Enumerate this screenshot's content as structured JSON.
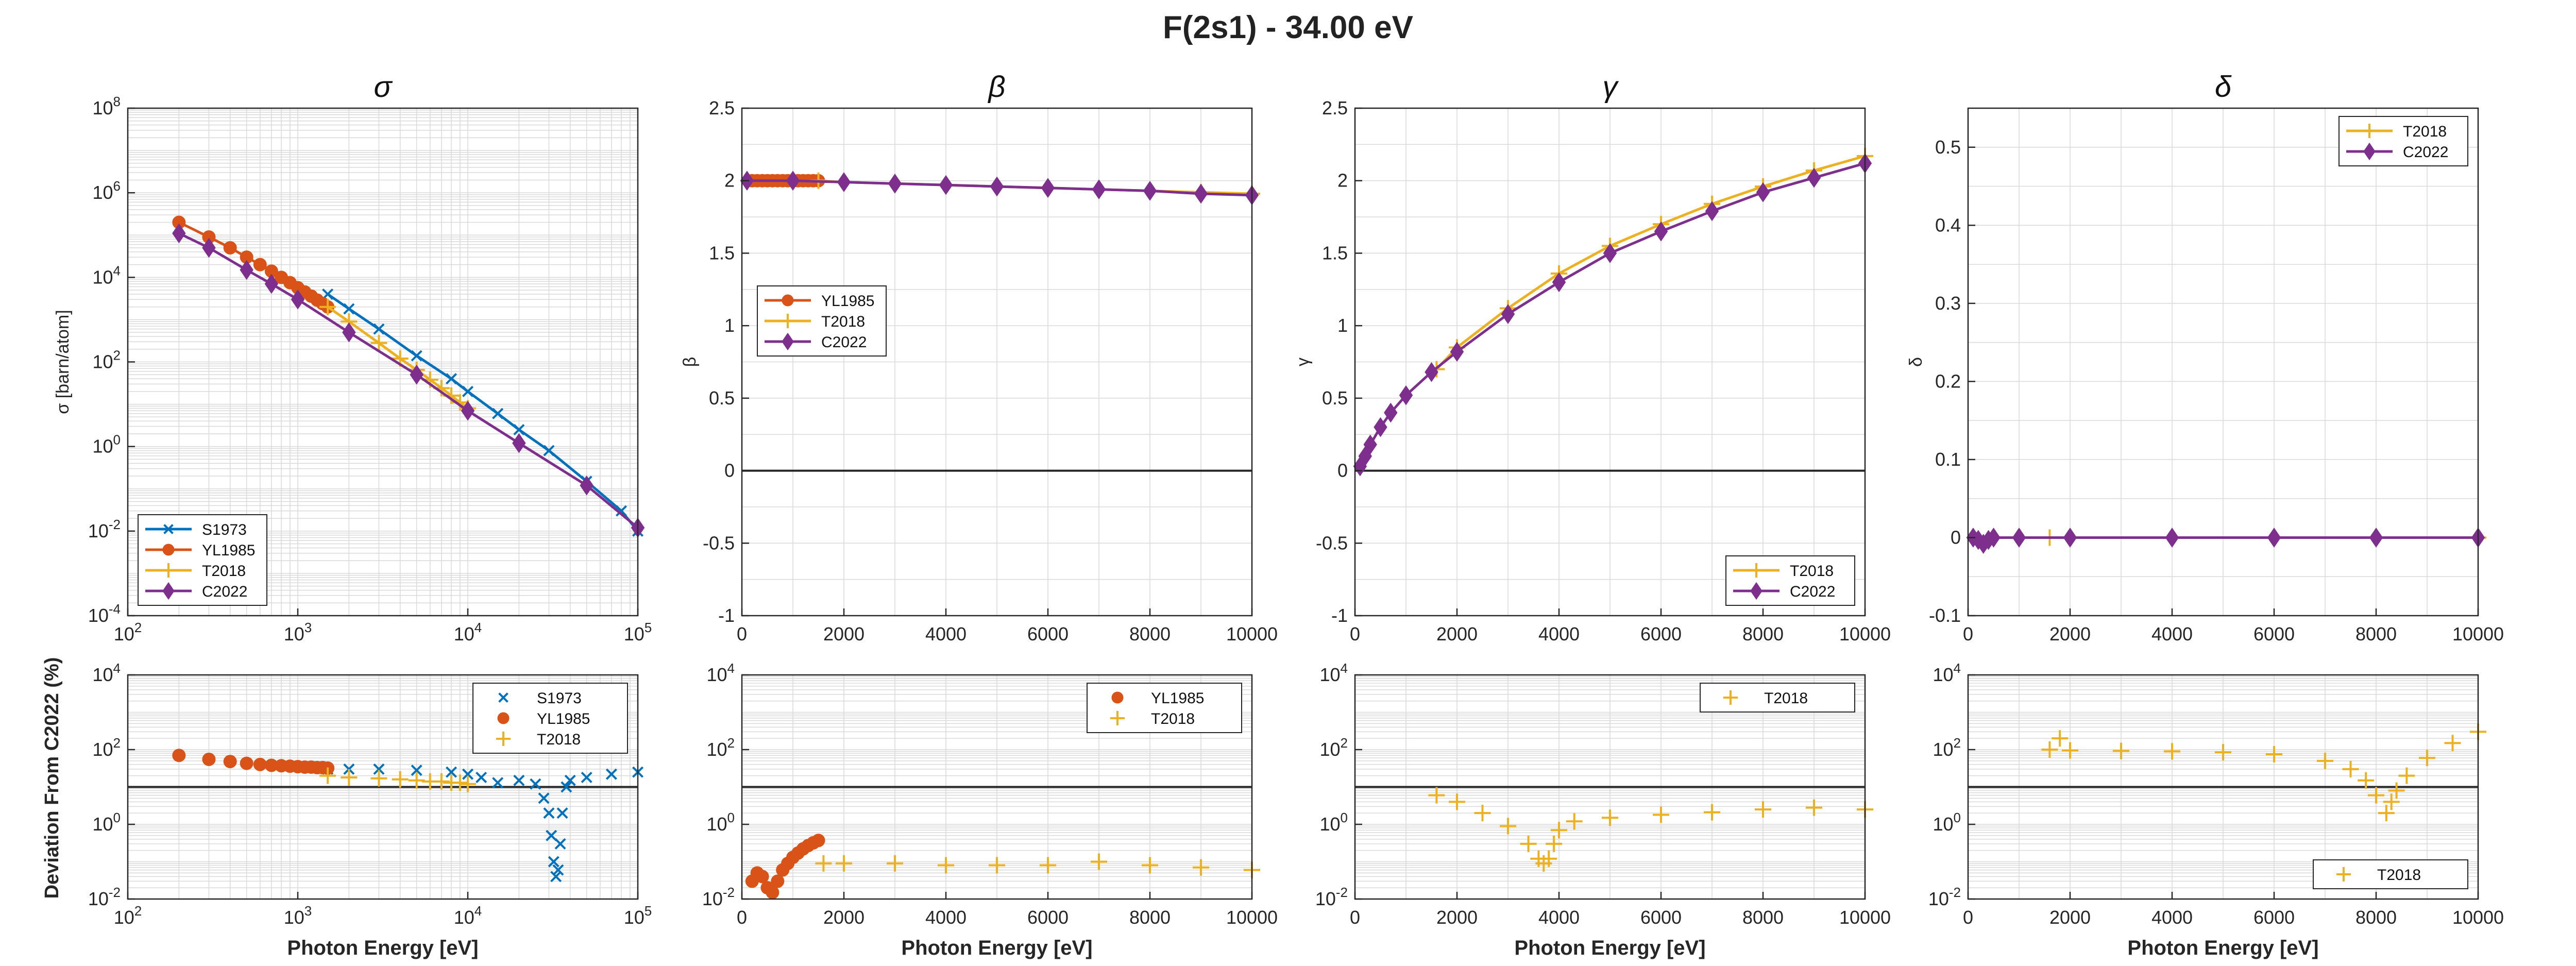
{
  "figure": {
    "title": "F(2s1) - 34.00 eV"
  },
  "colors": {
    "S1973": "#0072BD",
    "YL1985": "#D95319",
    "T2018": "#EDB120",
    "C2022": "#7E2F8E",
    "refline": "#262626",
    "grid": "#d9d9d9",
    "axis": "#262626"
  },
  "chart_data": [
    {
      "id": "sigma",
      "type": "line",
      "title": "σ",
      "ylabel": "σ [barn/atom]",
      "xlabel": "",
      "xscale": "log",
      "yscale": "log",
      "xlim": [
        100,
        100000
      ],
      "ylim": [
        0.0001,
        100000000
      ],
      "xticks": [
        100,
        1000,
        10000,
        100000
      ],
      "yticks": [
        0.0001,
        0.01,
        1,
        100,
        10000,
        1000000,
        100000000
      ],
      "grid": true,
      "legend": "bottom-left",
      "series": [
        {
          "name": "S1973",
          "marker": "x",
          "x": [
            1500,
            2000,
            3000,
            5000,
            8000,
            10000,
            15000,
            20000,
            30000,
            50000,
            80000,
            100000
          ],
          "y": [
            4000,
            1800,
            600,
            140,
            40,
            20,
            6,
            2.5,
            0.8,
            0.15,
            0.03,
            0.01
          ]
        },
        {
          "name": "YL1985",
          "marker": "o",
          "x": [
            200,
            300,
            400,
            500,
            600,
            700,
            800,
            900,
            1000,
            1100,
            1200,
            1300,
            1400,
            1500
          ],
          "y": [
            200000,
            90000,
            50000,
            30000,
            20000,
            14000,
            10000,
            7500,
            5700,
            4500,
            3600,
            2900,
            2400,
            2000
          ]
        },
        {
          "name": "T2018",
          "marker": "+",
          "x": [
            1500,
            2000,
            3000,
            4000,
            5000,
            6000,
            7000,
            8000,
            9000,
            10000
          ],
          "y": [
            2000,
            900,
            280,
            120,
            65,
            38,
            24,
            16,
            11,
            8
          ]
        },
        {
          "name": "C2022",
          "marker": "d",
          "x": [
            200,
            300,
            500,
            700,
            1000,
            2000,
            5000,
            10000,
            20000,
            50000,
            100000
          ],
          "y": [
            110000,
            50000,
            15000,
            7000,
            3000,
            500,
            50,
            7,
            1.2,
            0.12,
            0.012
          ]
        }
      ]
    },
    {
      "id": "beta",
      "type": "line",
      "title": "β",
      "ylabel": "β",
      "xlabel": "",
      "xscale": "linear",
      "yscale": "linear",
      "xlim": [
        0,
        10000
      ],
      "ylim": [
        -1,
        2.5
      ],
      "xticks": [
        0,
        2000,
        4000,
        6000,
        8000,
        10000
      ],
      "yticks": [
        -1,
        -0.5,
        0,
        0.5,
        1,
        1.5,
        2,
        2.5
      ],
      "grid": true,
      "legend": "upper-left",
      "refline": 0,
      "series": [
        {
          "name": "YL1985",
          "marker": "o",
          "x": [
            200,
            300,
            400,
            500,
            600,
            700,
            800,
            900,
            1000,
            1100,
            1200,
            1300,
            1400,
            1500
          ],
          "y": [
            2,
            2,
            2,
            2,
            2,
            2,
            2,
            2,
            2,
            2,
            2,
            2,
            2,
            2
          ]
        },
        {
          "name": "T2018",
          "marker": "+",
          "x": [
            1500,
            2000,
            3000,
            4000,
            5000,
            6000,
            7000,
            8000,
            9000,
            10000
          ],
          "y": [
            2.0,
            1.99,
            1.98,
            1.97,
            1.96,
            1.95,
            1.94,
            1.93,
            1.92,
            1.91
          ]
        },
        {
          "name": "C2022",
          "marker": "d",
          "x": [
            100,
            1000,
            2000,
            3000,
            4000,
            5000,
            6000,
            7000,
            8000,
            9000,
            10000
          ],
          "y": [
            2.0,
            2.0,
            1.99,
            1.98,
            1.97,
            1.96,
            1.95,
            1.94,
            1.93,
            1.91,
            1.9
          ]
        }
      ]
    },
    {
      "id": "gamma",
      "type": "line",
      "title": "γ",
      "ylabel": "γ",
      "xlabel": "",
      "xscale": "linear",
      "yscale": "linear",
      "xlim": [
        0,
        10000
      ],
      "ylim": [
        -1,
        2.5
      ],
      "xticks": [
        0,
        2000,
        4000,
        6000,
        8000,
        10000
      ],
      "yticks": [
        -1,
        -0.5,
        0,
        0.5,
        1,
        1.5,
        2,
        2.5
      ],
      "grid": true,
      "legend": "bottom-right",
      "refline": 0,
      "series": [
        {
          "name": "T2018",
          "marker": "+",
          "x": [
            1600,
            2000,
            3000,
            4000,
            5000,
            6000,
            7000,
            8000,
            9000,
            10000
          ],
          "y": [
            0.7,
            0.85,
            1.12,
            1.36,
            1.55,
            1.7,
            1.84,
            1.96,
            2.07,
            2.17
          ]
        },
        {
          "name": "C2022",
          "marker": "d",
          "x": [
            100,
            200,
            300,
            500,
            700,
            1000,
            1500,
            2000,
            3000,
            4000,
            5000,
            6000,
            7000,
            8000,
            9000,
            10000
          ],
          "y": [
            0.03,
            0.1,
            0.18,
            0.3,
            0.4,
            0.52,
            0.68,
            0.82,
            1.08,
            1.3,
            1.5,
            1.65,
            1.79,
            1.92,
            2.02,
            2.12
          ]
        }
      ]
    },
    {
      "id": "delta",
      "type": "line",
      "title": "δ",
      "ylabel": "δ",
      "xlabel": "",
      "xscale": "linear",
      "yscale": "linear",
      "xlim": [
        0,
        10000
      ],
      "ylim": [
        -0.1,
        0.55
      ],
      "xticks": [
        0,
        2000,
        4000,
        6000,
        8000,
        10000
      ],
      "yticks": [
        -0.1,
        0,
        0.1,
        0.2,
        0.3,
        0.4,
        0.5
      ],
      "grid": true,
      "legend": "top-right",
      "refline": 0,
      "series": [
        {
          "name": "T2018",
          "marker": "+",
          "x": [
            1600,
            2000,
            4000,
            6000,
            8000,
            10000
          ],
          "y": [
            0,
            0,
            0,
            0,
            0,
            0
          ]
        },
        {
          "name": "C2022",
          "marker": "d",
          "x": [
            100,
            200,
            300,
            400,
            500,
            1000,
            2000,
            4000,
            6000,
            8000,
            10000
          ],
          "y": [
            0,
            -0.003,
            -0.008,
            -0.003,
            0,
            0,
            0,
            0,
            0,
            0,
            0
          ]
        }
      ]
    },
    {
      "id": "sigma-dev",
      "type": "scatter",
      "title": "",
      "ylabel": "Deviation From C2022 (%)",
      "xlabel": "Photon Energy [eV]",
      "xscale": "log",
      "yscale": "log",
      "xlim": [
        100,
        100000
      ],
      "ylim": [
        0.01,
        10000
      ],
      "xticks": [
        100,
        1000,
        10000,
        100000
      ],
      "yticks": [
        0.01,
        1,
        100,
        10000
      ],
      "grid": true,
      "legend": "top-right",
      "refline": 10,
      "series": [
        {
          "name": "S1973",
          "marker": "x",
          "x": [
            1500,
            2000,
            3000,
            5000,
            8000,
            10000,
            12000,
            15000,
            20000,
            25000,
            28000,
            30000,
            31000,
            32000,
            33000,
            34000,
            35000,
            36000,
            38000,
            40000,
            50000,
            70000,
            100000
          ],
          "y": [
            30,
            30,
            30,
            28,
            25,
            22,
            18,
            13,
            15,
            12,
            5,
            2,
            0.5,
            0.1,
            0.04,
            0.06,
            0.3,
            2,
            10,
            15,
            18,
            22,
            25
          ]
        },
        {
          "name": "YL1985",
          "marker": "o",
          "x": [
            200,
            300,
            400,
            500,
            600,
            700,
            800,
            900,
            1000,
            1100,
            1200,
            1300,
            1400,
            1500
          ],
          "y": [
            70,
            55,
            48,
            43,
            40,
            38,
            37,
            36,
            35,
            34,
            34,
            33,
            33,
            32
          ]
        },
        {
          "name": "T2018",
          "marker": "+",
          "x": [
            1500,
            2000,
            3000,
            4000,
            5000,
            6000,
            7000,
            8000,
            9000,
            10000
          ],
          "y": [
            20,
            18,
            17,
            16,
            15,
            14,
            14,
            13,
            13,
            12
          ]
        }
      ]
    },
    {
      "id": "beta-dev",
      "type": "scatter",
      "title": "",
      "ylabel": "",
      "xlabel": "Photon Energy [eV]",
      "xscale": "linear",
      "yscale": "log",
      "xlim": [
        0,
        10000
      ],
      "ylim": [
        0.01,
        10000
      ],
      "xticks": [
        0,
        2000,
        4000,
        6000,
        8000,
        10000
      ],
      "yticks": [
        0.01,
        1,
        100,
        10000
      ],
      "grid": true,
      "legend": "top-right",
      "refline": 10,
      "series": [
        {
          "name": "YL1985",
          "marker": "o",
          "x": [
            200,
            300,
            400,
            500,
            600,
            700,
            800,
            900,
            1000,
            1100,
            1200,
            1300,
            1400,
            1500
          ],
          "y": [
            0.03,
            0.05,
            0.04,
            0.02,
            0.015,
            0.03,
            0.06,
            0.09,
            0.13,
            0.17,
            0.22,
            0.27,
            0.32,
            0.37
          ]
        },
        {
          "name": "T2018",
          "marker": "+",
          "x": [
            1600,
            2000,
            3000,
            4000,
            5000,
            6000,
            7000,
            8000,
            9000,
            10000
          ],
          "y": [
            0.09,
            0.09,
            0.09,
            0.08,
            0.08,
            0.08,
            0.1,
            0.08,
            0.07,
            0.06
          ]
        }
      ]
    },
    {
      "id": "gamma-dev",
      "type": "scatter",
      "title": "",
      "ylabel": "",
      "xlabel": "Photon Energy [eV]",
      "xscale": "linear",
      "yscale": "log",
      "xlim": [
        0,
        10000
      ],
      "ylim": [
        0.01,
        10000
      ],
      "xticks": [
        0,
        2000,
        4000,
        6000,
        8000,
        10000
      ],
      "yticks": [
        0.01,
        1,
        100,
        10000
      ],
      "grid": true,
      "legend": "top-right",
      "refline": 10,
      "series": [
        {
          "name": "T2018",
          "marker": "+",
          "x": [
            1600,
            2000,
            2500,
            3000,
            3400,
            3600,
            3700,
            3800,
            3900,
            4000,
            4300,
            5000,
            6000,
            7000,
            8000,
            9000,
            10000
          ],
          "y": [
            6,
            4,
            2,
            0.9,
            0.3,
            0.12,
            0.09,
            0.12,
            0.3,
            0.7,
            1.2,
            1.5,
            1.8,
            2.1,
            2.5,
            2.8,
            2.5
          ]
        }
      ]
    },
    {
      "id": "delta-dev",
      "type": "scatter",
      "title": "",
      "ylabel": "",
      "xlabel": "Photon Energy [eV]",
      "xscale": "linear",
      "yscale": "log",
      "xlim": [
        0,
        10000
      ],
      "ylim": [
        0.01,
        10000
      ],
      "xticks": [
        0,
        2000,
        4000,
        6000,
        8000,
        10000
      ],
      "yticks": [
        0.01,
        1,
        100,
        10000
      ],
      "grid": true,
      "legend": "bottom-right",
      "refline": 10,
      "series": [
        {
          "name": "T2018",
          "marker": "+",
          "x": [
            1600,
            1800,
            2000,
            3000,
            4000,
            5000,
            6000,
            7000,
            7500,
            7800,
            8000,
            8200,
            8300,
            8400,
            8600,
            9000,
            9500,
            10000
          ],
          "y": [
            100,
            200,
            95,
            92,
            90,
            85,
            75,
            50,
            30,
            15,
            6,
            2,
            4,
            8,
            20,
            60,
            150,
            300
          ]
        }
      ]
    }
  ]
}
